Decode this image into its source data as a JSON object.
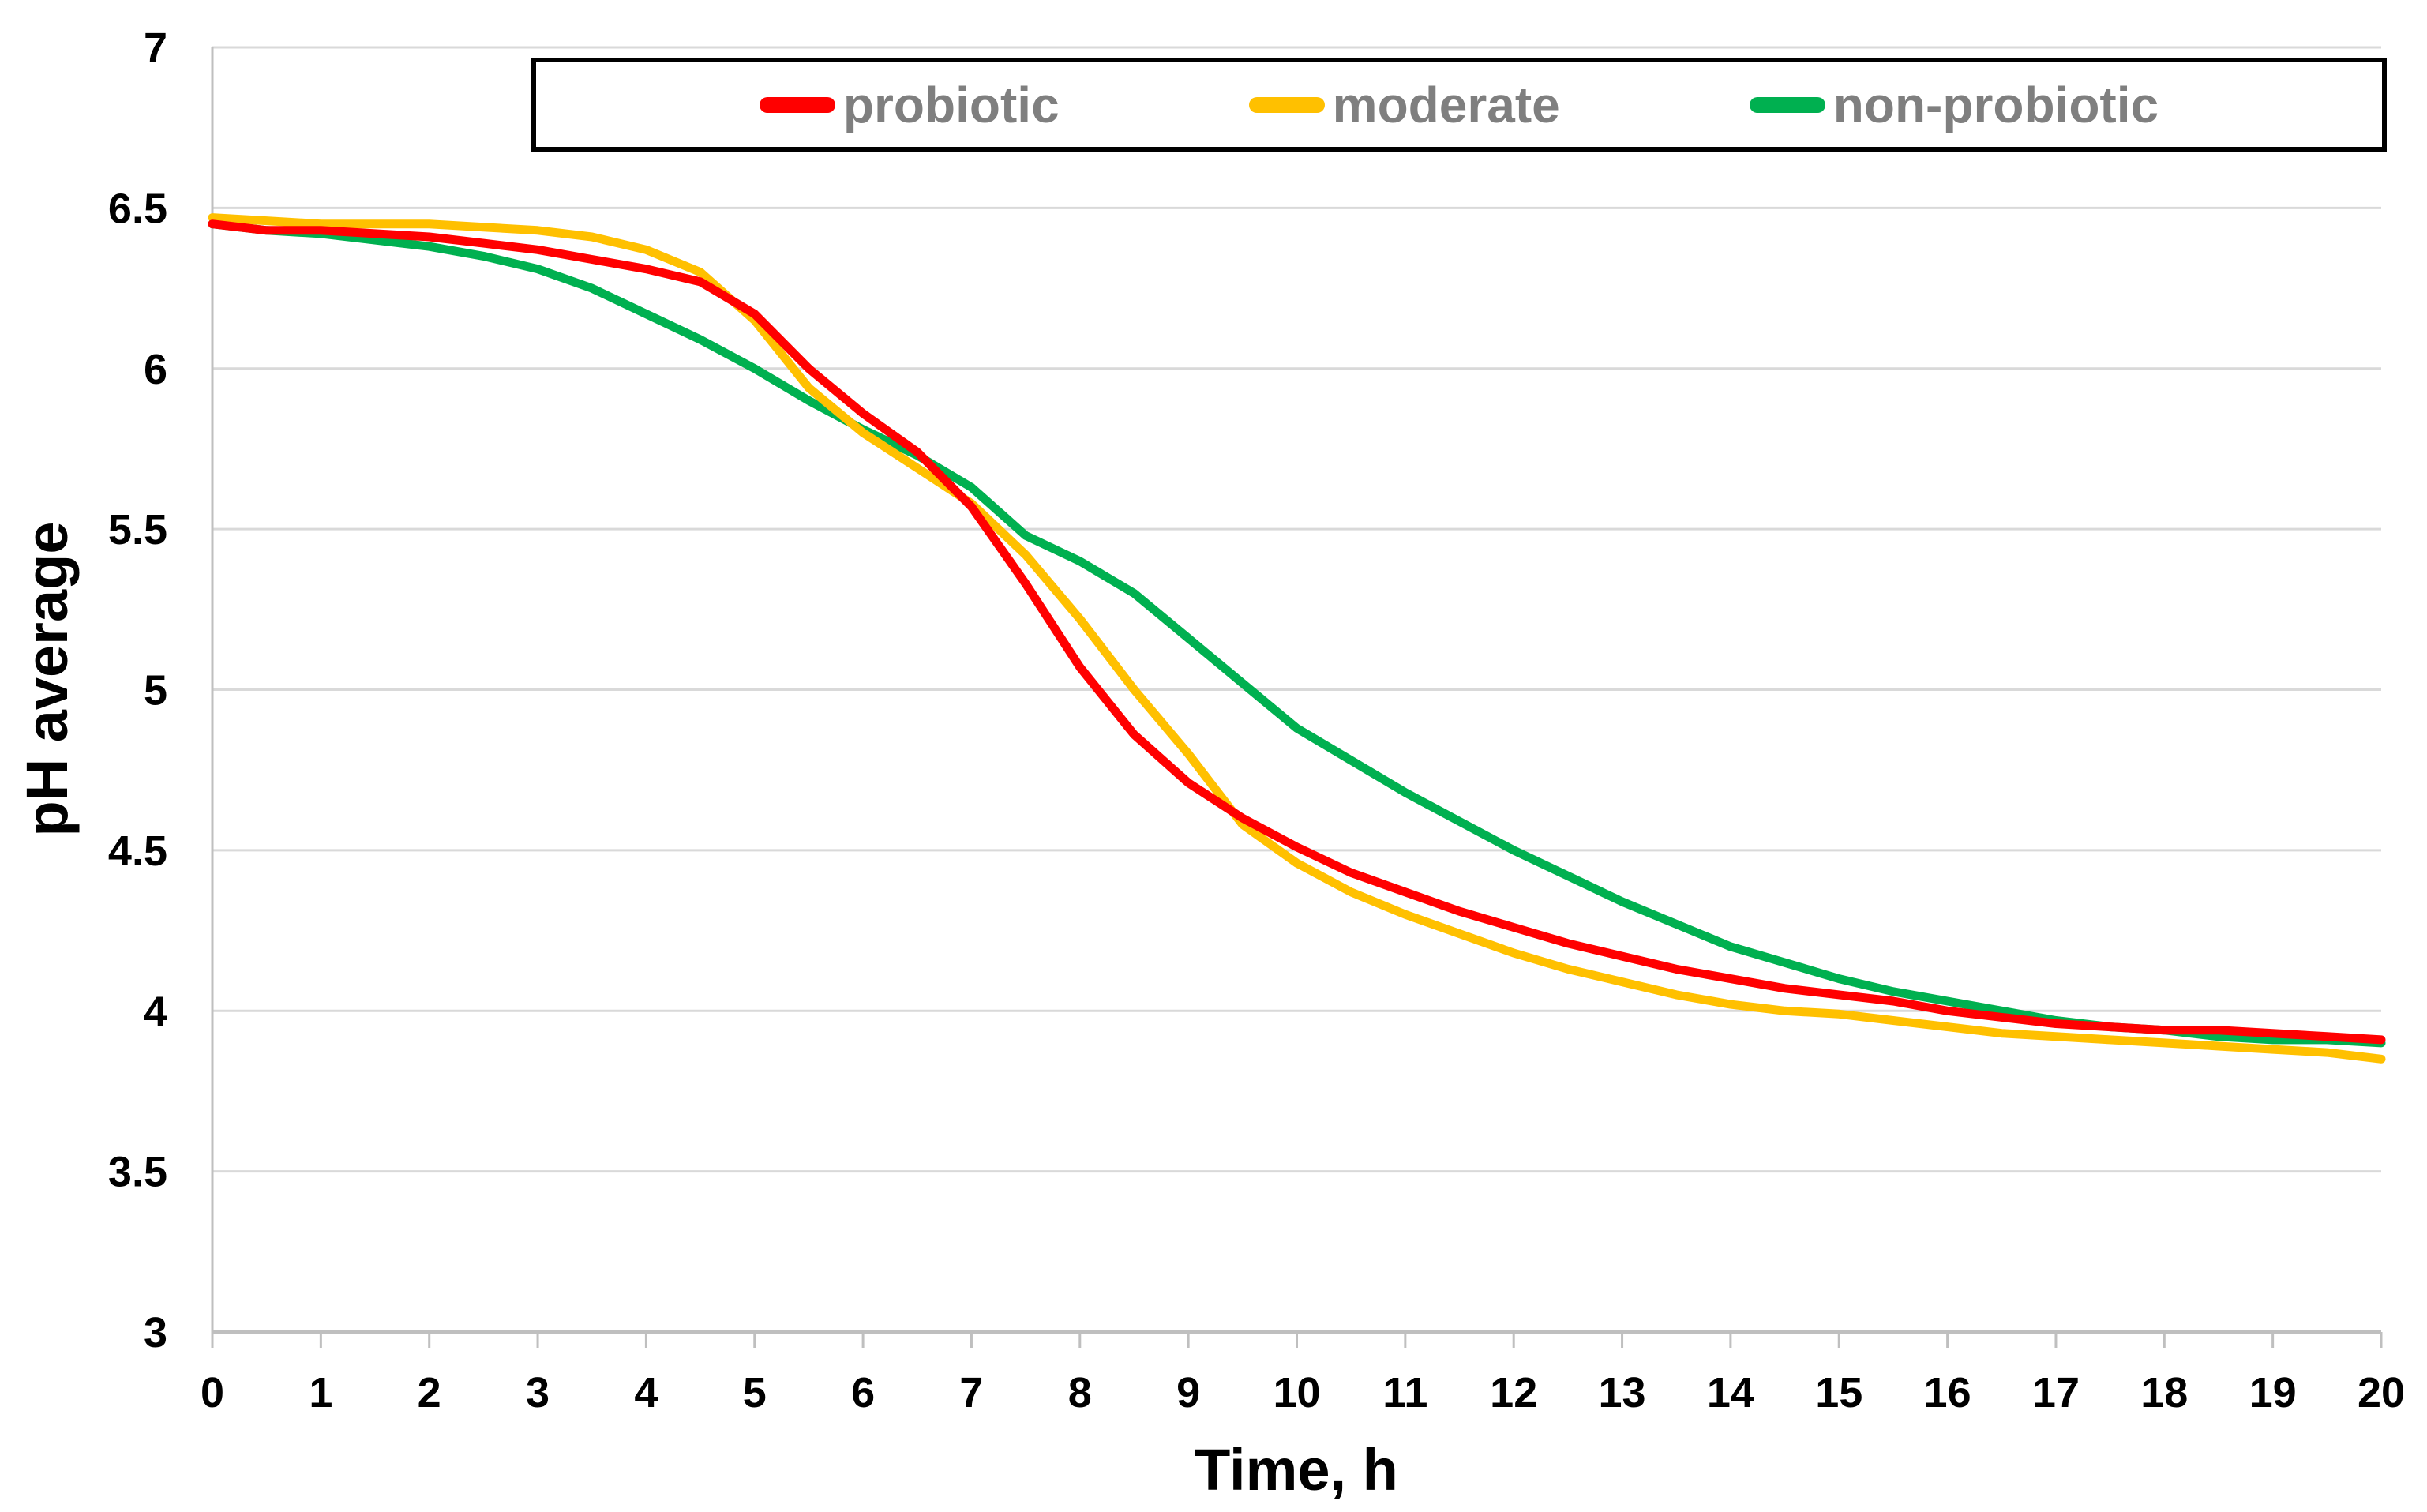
{
  "chart_data": {
    "type": "line",
    "title": "",
    "xlabel": "Time, h",
    "ylabel": "pH average",
    "xlim": [
      0,
      20
    ],
    "ylim": [
      3,
      7
    ],
    "x_tick_step": 1,
    "y_tick_step": 0.5,
    "x_ticks": [
      "0",
      "1",
      "2",
      "3",
      "4",
      "5",
      "6",
      "7",
      "8",
      "9",
      "10",
      "11",
      "12",
      "13",
      "14",
      "15",
      "16",
      "17",
      "18",
      "19",
      "20"
    ],
    "y_ticks": [
      "3",
      "3.5",
      "4",
      "4.5",
      "5",
      "5.5",
      "6",
      "6.5",
      "7"
    ],
    "grid": "horizontal-only",
    "legend_position": "top-inside-framed",
    "x_step": 0.5,
    "series": [
      {
        "name": "probiotic",
        "color": "#FF0000",
        "values": [
          6.45,
          6.43,
          6.43,
          6.42,
          6.41,
          6.39,
          6.37,
          6.34,
          6.31,
          6.27,
          6.17,
          6.0,
          5.86,
          5.74,
          5.57,
          5.33,
          5.07,
          4.86,
          4.71,
          4.6,
          4.51,
          4.43,
          4.37,
          4.31,
          4.26,
          4.21,
          4.17,
          4.13,
          4.1,
          4.07,
          4.05,
          4.03,
          4.0,
          3.98,
          3.96,
          3.95,
          3.94,
          3.94,
          3.93,
          3.92,
          3.91
        ]
      },
      {
        "name": "moderate",
        "color": "#FFC000",
        "values": [
          6.47,
          6.46,
          6.45,
          6.45,
          6.45,
          6.44,
          6.43,
          6.41,
          6.37,
          6.3,
          6.15,
          5.94,
          5.8,
          5.69,
          5.58,
          5.42,
          5.22,
          5.0,
          4.8,
          4.58,
          4.46,
          4.37,
          4.3,
          4.24,
          4.18,
          4.13,
          4.09,
          4.05,
          4.02,
          4.0,
          3.99,
          3.97,
          3.95,
          3.93,
          3.92,
          3.91,
          3.9,
          3.89,
          3.88,
          3.87,
          3.85
        ]
      },
      {
        "name": "non-probiotic",
        "color": "#00B050",
        "values": [
          6.45,
          6.43,
          6.42,
          6.4,
          6.38,
          6.35,
          6.31,
          6.25,
          6.17,
          6.09,
          6.0,
          5.9,
          5.81,
          5.73,
          5.63,
          5.48,
          5.4,
          5.3,
          5.16,
          5.02,
          4.88,
          4.78,
          4.68,
          4.59,
          4.5,
          4.42,
          4.34,
          4.27,
          4.2,
          4.15,
          4.1,
          4.06,
          4.03,
          4.0,
          3.97,
          3.95,
          3.94,
          3.92,
          3.91,
          3.91,
          3.9
        ]
      }
    ]
  },
  "colors": {
    "gridline": "#D9D9D9",
    "axis_line": "#BFBFBF",
    "tick_label": "#000000",
    "axis_title": "#000000",
    "legend_text": "#7f7f7f",
    "legend_border": "#000000",
    "background": "#FFFFFF"
  }
}
